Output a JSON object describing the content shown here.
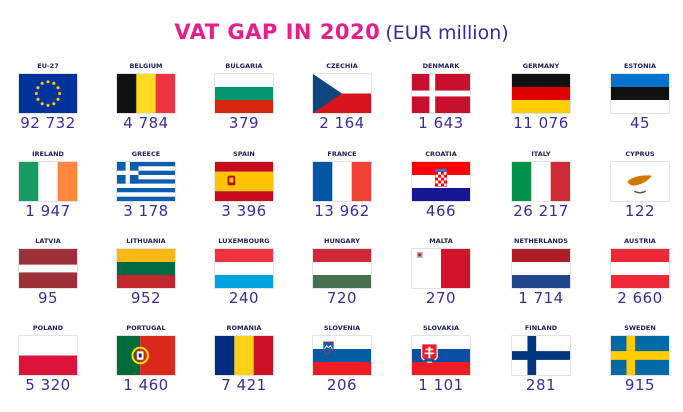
{
  "title": {
    "main": "VAT GAP IN 2020",
    "unit": "(EUR million)"
  },
  "colors": {
    "title": "#e61e8c",
    "values": "#3c2d9a",
    "names": "#1e1e5a"
  },
  "countries": [
    {
      "name": "EU-27",
      "value": "92 732",
      "flag": "eu-flag-icon"
    },
    {
      "name": "BELGIUM",
      "value": "4 784",
      "flag": "belgium-flag-icon"
    },
    {
      "name": "BULGARIA",
      "value": "379",
      "flag": "bulgaria-flag-icon"
    },
    {
      "name": "CZECHIA",
      "value": "2 164",
      "flag": "czechia-flag-icon"
    },
    {
      "name": "DENMARK",
      "value": "1 643",
      "flag": "denmark-flag-icon"
    },
    {
      "name": "GERMANY",
      "value": "11 076",
      "flag": "germany-flag-icon"
    },
    {
      "name": "ESTONIA",
      "value": "45",
      "flag": "estonia-flag-icon"
    },
    {
      "name": "IRELAND",
      "value": "1 947",
      "flag": "ireland-flag-icon"
    },
    {
      "name": "GREECE",
      "value": "3 178",
      "flag": "greece-flag-icon"
    },
    {
      "name": "SPAIN",
      "value": "3 396",
      "flag": "spain-flag-icon"
    },
    {
      "name": "FRANCE",
      "value": "13 962",
      "flag": "france-flag-icon"
    },
    {
      "name": "CROATIA",
      "value": "466",
      "flag": "croatia-flag-icon"
    },
    {
      "name": "ITALY",
      "value": "26 217",
      "flag": "italy-flag-icon"
    },
    {
      "name": "CYPRUS",
      "value": "122",
      "flag": "cyprus-flag-icon"
    },
    {
      "name": "LATVIA",
      "value": "95",
      "flag": "latvia-flag-icon"
    },
    {
      "name": "LITHUANIA",
      "value": "952",
      "flag": "lithuania-flag-icon"
    },
    {
      "name": "LUXEMBOURG",
      "value": "240",
      "flag": "luxembourg-flag-icon"
    },
    {
      "name": "HUNGARY",
      "value": "720",
      "flag": "hungary-flag-icon"
    },
    {
      "name": "MALTA",
      "value": "270",
      "flag": "malta-flag-icon"
    },
    {
      "name": "NETHERLANDS",
      "value": "1 714",
      "flag": "netherlands-flag-icon"
    },
    {
      "name": "AUSTRIA",
      "value": "2 660",
      "flag": "austria-flag-icon"
    },
    {
      "name": "POLAND",
      "value": "5 320",
      "flag": "poland-flag-icon"
    },
    {
      "name": "PORTUGAL",
      "value": "1 460",
      "flag": "portugal-flag-icon"
    },
    {
      "name": "ROMANIA",
      "value": "7 421",
      "flag": "romania-flag-icon"
    },
    {
      "name": "SLOVENIA",
      "value": "206",
      "flag": "slovenia-flag-icon"
    },
    {
      "name": "SLOVAKIA",
      "value": "1 101",
      "flag": "slovakia-flag-icon"
    },
    {
      "name": "FINLAND",
      "value": "281",
      "flag": "finland-flag-icon"
    },
    {
      "name": "SWEDEN",
      "value": "915",
      "flag": "sweden-flag-icon"
    }
  ]
}
